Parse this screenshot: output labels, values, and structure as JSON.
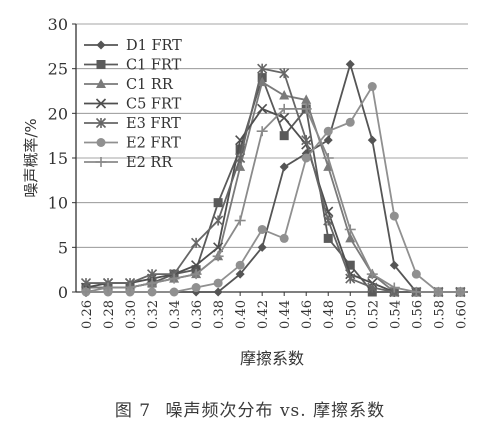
{
  "caption": {
    "figure_label": "图 7",
    "text": "噪声频次分布 vs. 摩擦系数"
  },
  "colors": {
    "axis": "#333333",
    "grid": "#888888",
    "series_dark": "#555555",
    "series_mid": "#6f6f6f",
    "series_light": "#909090"
  },
  "chart_data": {
    "type": "line",
    "title": "",
    "xlabel": "摩擦系数",
    "ylabel": "噪声概率/%",
    "xlim": [
      0.26,
      0.6
    ],
    "ylim": [
      0,
      30
    ],
    "yticks": [
      0,
      5,
      10,
      15,
      20,
      25,
      30
    ],
    "grid": true,
    "legend_position": "top-left",
    "x": [
      0.26,
      0.28,
      0.3,
      0.32,
      0.34,
      0.36,
      0.38,
      0.4,
      0.42,
      0.44,
      0.46,
      0.48,
      0.5,
      0.52,
      0.54,
      0.56,
      0.58,
      0.6
    ],
    "x_tick_labels": [
      "0.26",
      "0.28",
      "0.30",
      "0.32",
      "0.34",
      "0.36",
      "0.38",
      "0.40",
      "0.42",
      "0.44",
      "0.46",
      "0.48",
      "0.50",
      "0.52",
      "0.54",
      "0.56",
      "0.58",
      "0.60"
    ],
    "series": [
      {
        "name": "D1 FRT",
        "marker": "diamond",
        "color": "#555555",
        "values": [
          0,
          0,
          0,
          0,
          0,
          0,
          0,
          2,
          5,
          14,
          15.5,
          17,
          25.5,
          17,
          3,
          0,
          0,
          0
        ]
      },
      {
        "name": "C1 FRT",
        "marker": "square",
        "color": "#5a5a5a",
        "values": [
          0.5,
          0.5,
          0.5,
          1,
          2,
          2.5,
          10,
          16,
          24,
          17.5,
          20.5,
          6,
          3,
          0,
          0,
          0,
          0,
          0
        ]
      },
      {
        "name": "C1 RR",
        "marker": "triangle",
        "color": "#7a7a7a",
        "values": [
          0.5,
          0.5,
          0.5,
          1,
          1.5,
          2,
          4,
          14,
          23.5,
          22,
          21.5,
          14,
          6,
          2,
          0,
          0,
          0,
          0
        ]
      },
      {
        "name": "C5 FRT",
        "marker": "x",
        "color": "#4f4f4f",
        "values": [
          0.5,
          1,
          1,
          1.5,
          2,
          3,
          5,
          17,
          20.5,
          19.5,
          16.5,
          9,
          2,
          1,
          0,
          0,
          0,
          0
        ]
      },
      {
        "name": "E3 FRT",
        "marker": "asterisk",
        "color": "#666666",
        "values": [
          1,
          1,
          1,
          2,
          2,
          5.5,
          8,
          15,
          25,
          24.5,
          17,
          8,
          1.5,
          0.5,
          0,
          0,
          0,
          0
        ]
      },
      {
        "name": "E2 FRT",
        "marker": "circle",
        "color": "#909090",
        "values": [
          0,
          0,
          0,
          0,
          0,
          0.5,
          1,
          3,
          7,
          6,
          15,
          18,
          19,
          23,
          8.5,
          2,
          0,
          0
        ]
      },
      {
        "name": "E2 RR",
        "marker": "plus",
        "color": "#8a8a8a",
        "values": [
          0,
          0.5,
          0.5,
          1,
          1.5,
          2,
          4,
          8,
          18,
          20.5,
          20.5,
          15,
          7,
          2,
          0.5,
          0,
          0,
          0
        ]
      }
    ]
  }
}
